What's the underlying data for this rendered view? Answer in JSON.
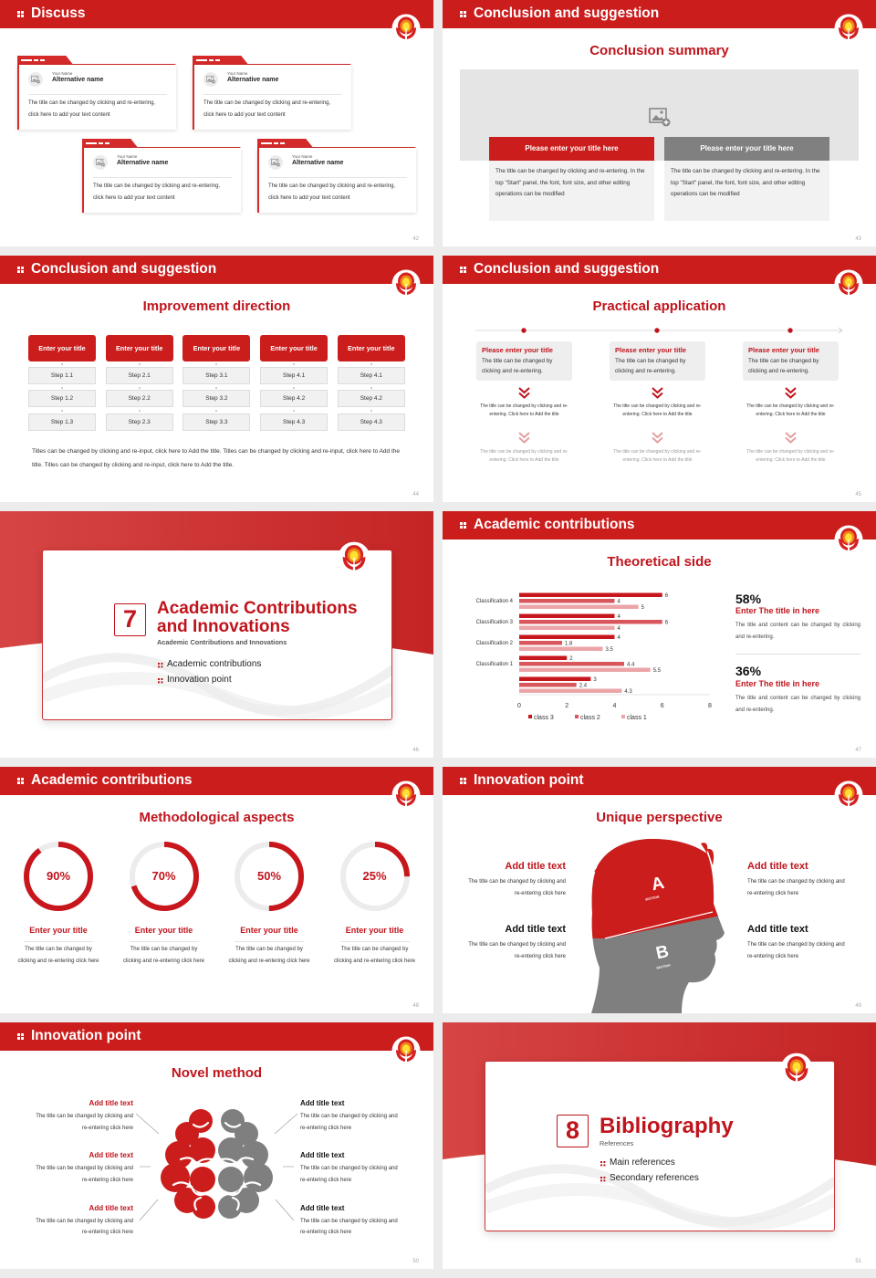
{
  "colors": {
    "brand_red": "#cc1d1d",
    "title_red": "#c0141c",
    "gray": "#808080",
    "light_gray": "#f2f2f2"
  },
  "icons": {
    "logo": "university-flame-logo",
    "header": "four-dots-icon",
    "image": "image-placeholder-icon",
    "chevron": "double-chevron-down-icon"
  },
  "s42": {
    "title": "Discuss",
    "page": "42",
    "cards": [
      {
        "label": "Your Name",
        "name": "Alternative name",
        "text": "The title can be changed by clicking and re-entering, click here to add your text content"
      },
      {
        "label": "Your Name",
        "name": "Alternative name",
        "text": "The title can be changed by clicking and re-entering, click here to add your text content"
      },
      {
        "label": "Your Name",
        "name": "Alternative name",
        "text": "The title can be changed by clicking and re-entering, click here to add your text content"
      },
      {
        "label": "Your Name",
        "name": "Alternative name",
        "text": "The title can be changed by clicking and re-entering, click here to add your text content"
      }
    ]
  },
  "s43": {
    "title": "Conclusion and suggestion",
    "subtitle": "Conclusion summary",
    "page": "43",
    "boxes": [
      {
        "title": "Please enter your title here",
        "text": "The title can be changed by clicking and re-entering. In the top \"Start\" panel, the font, font size, and other editing operations can be modified"
      },
      {
        "title": "Please enter your title here",
        "text": "The title can be changed by clicking and re-entering. In the top \"Start\" panel, the font, font size, and other editing operations can be modified"
      }
    ]
  },
  "s44": {
    "title": "Conclusion and suggestion",
    "subtitle": "Improvement direction",
    "page": "44",
    "columns": [
      {
        "title": "Enter your title",
        "steps": [
          "Step 1.1",
          "Step 1.2",
          "Step 1.3"
        ]
      },
      {
        "title": "Enter your title",
        "steps": [
          "Step 2.1",
          "Step 2.2",
          "Step 2.3"
        ]
      },
      {
        "title": "Enter your title",
        "steps": [
          "Step 3.1",
          "Step 3.2",
          "Step 3.3"
        ]
      },
      {
        "title": "Enter your title",
        "steps": [
          "Step 4.1",
          "Step 4.2",
          "Step 4.3"
        ]
      },
      {
        "title": "Enter your title",
        "steps": [
          "Step 4.1",
          "Step 4.2",
          "Step 4.3"
        ]
      }
    ],
    "paragraph": "Titles can be changed by clicking and re-input, click here to Add the title. Titles can be changed by clicking and re-input, click here to Add the title. Titles can be changed by clicking and re-input, click here to Add the title."
  },
  "s45": {
    "title": "Conclusion and suggestion",
    "subtitle": "Practical application",
    "page": "45",
    "items": [
      {
        "title": "Please enter your title",
        "text": "The title can be changed by clicking and re-entering.",
        "sub1": "The title can be changed by clicking and re-entering. Click here to Add the title",
        "sub2": "The title can be changed by clicking and re-entering. Click here to Add the title"
      },
      {
        "title": "Please enter your title",
        "text": "The title can be changed by clicking and re-entering.",
        "sub1": "The title can be changed by clicking and re-entering. Click here to Add the title",
        "sub2": "The title can be changed by clicking and re-entering. Click here to Add the title"
      },
      {
        "title": "Please enter your title",
        "text": "The title can be changed by clicking and re-entering.",
        "sub1": "The title can be changed by clicking and re-entering. Click here to Add the title",
        "sub2": "The title can be changed by clicking and re-entering. Click here to Add the title"
      }
    ]
  },
  "s46": {
    "number": "7",
    "title_line1": "Academic Contributions",
    "title_line2": "and Innovations",
    "subtitle": "Academic Contributions and Innovations",
    "bullets": [
      "Academic contributions",
      "Innovation point"
    ],
    "page": "46"
  },
  "s47": {
    "title": "Academic contributions",
    "subtitle": "Theoretical side",
    "page": "47",
    "stats": [
      {
        "value": "58%",
        "title": "Enter The title in here",
        "text": "The title and content can be changed by clicking and re-entering."
      },
      {
        "value": "36%",
        "title": "Enter The title in here",
        "text": "The title and content can be changed by clicking and re-entering."
      }
    ]
  },
  "chart_data": {
    "type": "bar",
    "orientation": "horizontal",
    "categories": [
      "Classification 4",
      "Classification 3",
      "Classification 2",
      "Classification 1",
      ""
    ],
    "series": [
      {
        "name": "class 3",
        "values": [
          6,
          4,
          4,
          2,
          3
        ],
        "color": "#c8161d"
      },
      {
        "name": "class 2",
        "values": [
          4,
          6,
          1.8,
          4.4,
          2.4
        ],
        "color": "#d9575c"
      },
      {
        "name": "class 1",
        "values": [
          5,
          4,
          3.5,
          5.5,
          4.3
        ],
        "color": "#eba5a8"
      }
    ],
    "xlim": [
      0,
      8
    ],
    "xticks": [
      "0",
      "2",
      "4",
      "6",
      "8"
    ],
    "legend": "bottom",
    "grid": false,
    "data_labels": true
  },
  "s48": {
    "title": "Academic contributions",
    "subtitle": "Methodological aspects",
    "page": "48",
    "rings": [
      {
        "value": 90,
        "label": "90%",
        "title": "Enter your title",
        "text": "The title can be changed by clicking and re-entering click here"
      },
      {
        "value": 70,
        "label": "70%",
        "title": "Enter your title",
        "text": "The title can be changed by clicking and re-entering click here"
      },
      {
        "value": 50,
        "label": "50%",
        "title": "Enter your title",
        "text": "The title can be changed by clicking and re-entering click here"
      },
      {
        "value": 25,
        "label": "25%",
        "title": "Enter your title",
        "text": "The title can be changed by clicking and re-entering click here"
      }
    ]
  },
  "s49": {
    "title": "Innovation point",
    "subtitle": "Unique perspective",
    "page": "49",
    "section_a": "A",
    "section_b": "B",
    "section_word": "SECTION",
    "left": [
      {
        "title": "Add title text",
        "text": "The title can be changed by clicking and re-entering click here"
      },
      {
        "title": "Add title text",
        "text": "The title can be changed by clicking and re-entering click here"
      }
    ],
    "right": [
      {
        "title": "Add title text",
        "text": "The title can be changed by clicking and re-entering click here"
      },
      {
        "title": "Add title text",
        "text": "The title can be changed by clicking and re-entering click here"
      }
    ]
  },
  "s50": {
    "title": "Innovation point",
    "subtitle": "Novel method",
    "page": "50",
    "left": [
      {
        "title": "Add title text",
        "text": "The title can be changed by clicking and re-entering click here"
      },
      {
        "title": "Add title text",
        "text": "The title can be changed by clicking and re-entering click here"
      },
      {
        "title": "Add title text",
        "text": "The title can be changed by clicking and re-entering click here"
      }
    ],
    "right": [
      {
        "title": "Add title text",
        "text": "The title can be changed by clicking and re-entering click here"
      },
      {
        "title": "Add title text",
        "text": "The title can be changed by clicking and re-entering click here"
      },
      {
        "title": "Add title text",
        "text": "The title can be changed by clicking and re-entering click here"
      }
    ]
  },
  "s51": {
    "number": "8",
    "title": "Bibliography",
    "subtitle": "References",
    "bullets": [
      "Main references",
      "Secondary references"
    ],
    "page": "51"
  }
}
